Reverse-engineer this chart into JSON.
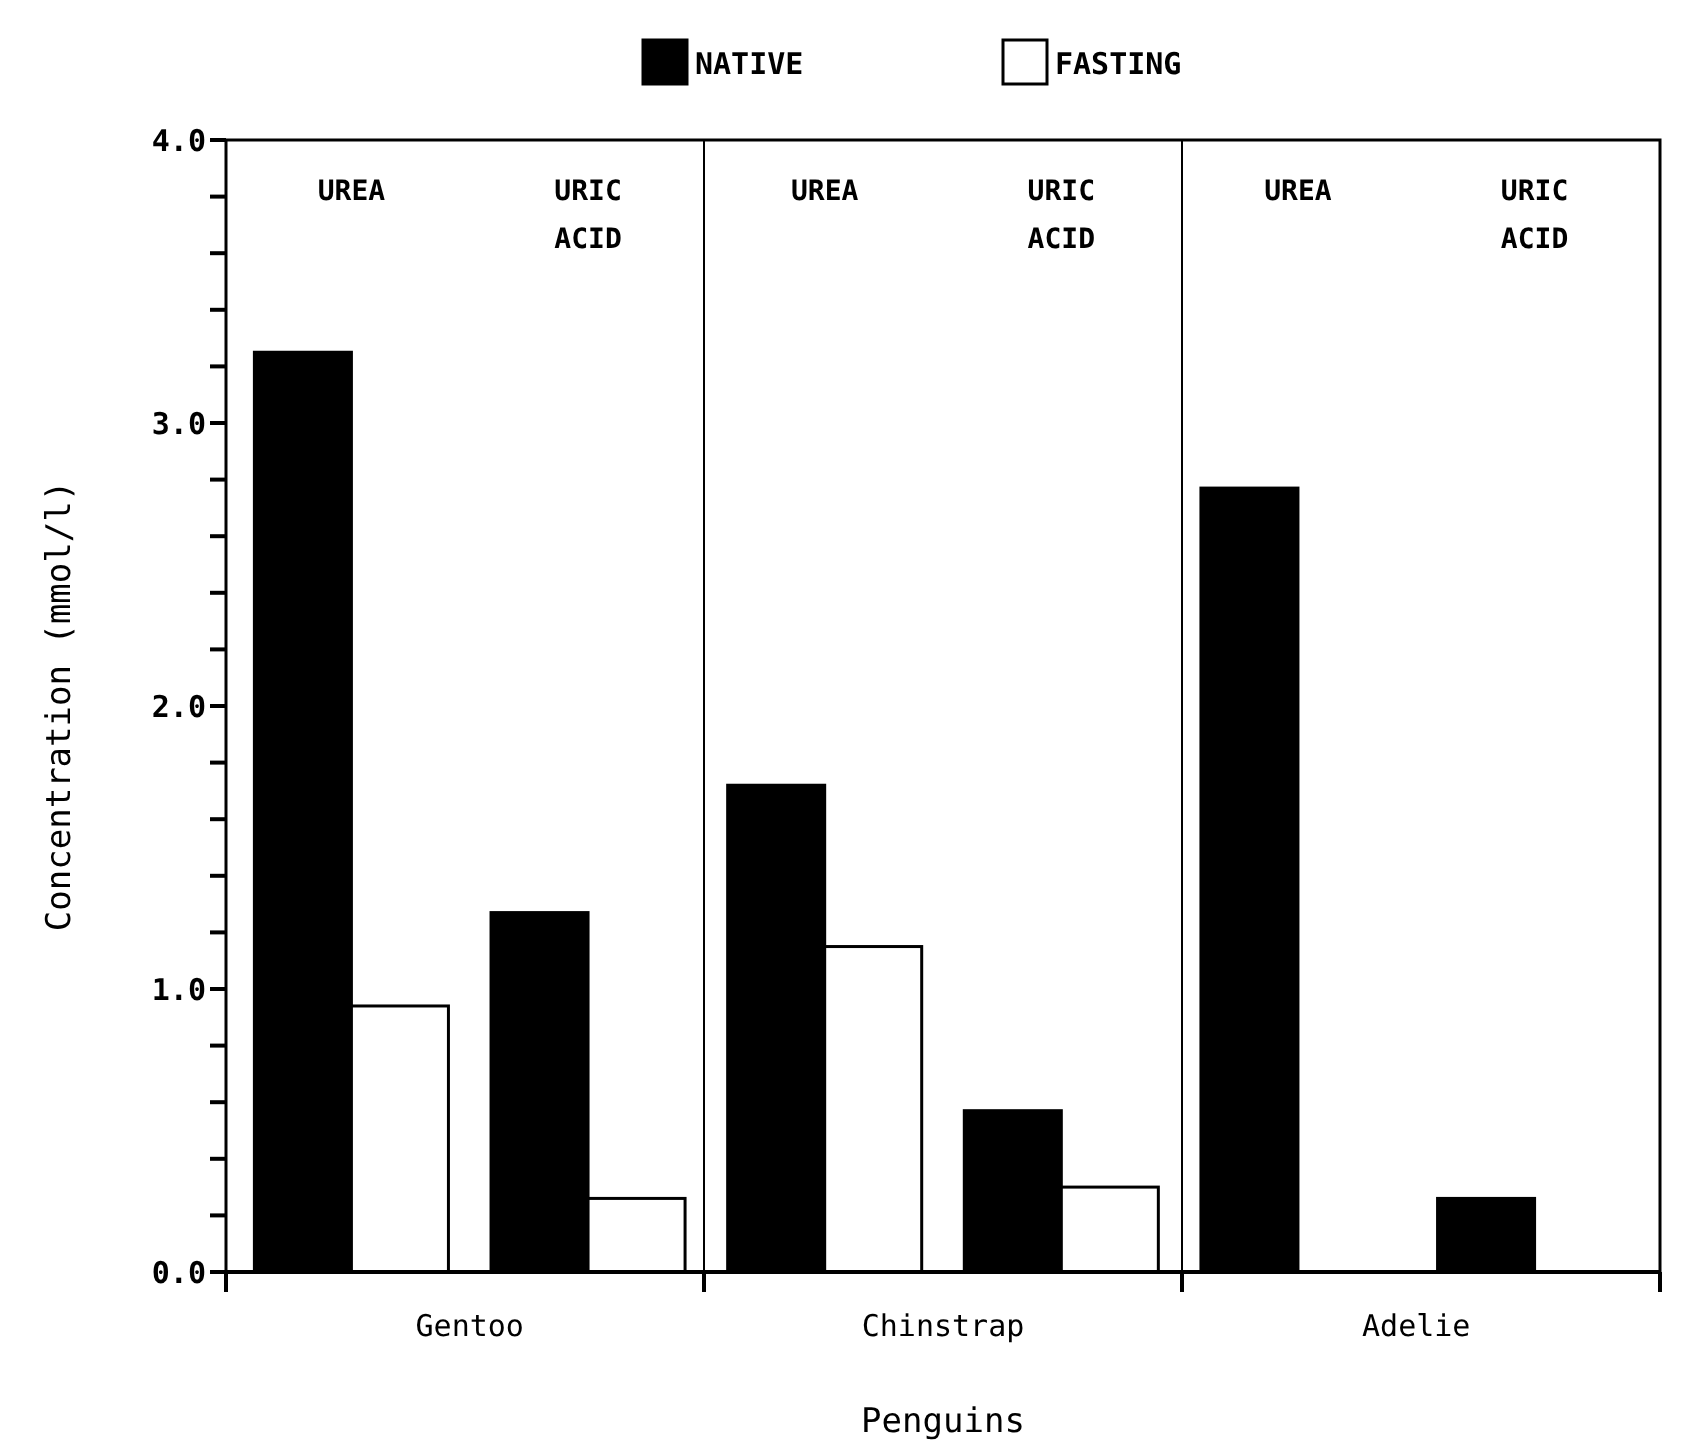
{
  "chart_data": {
    "type": "bar",
    "xlabel": "Penguins",
    "ylabel": "Concentration (mmol/l)",
    "categories": [
      "UREA",
      "URIC ACID",
      "UREA",
      "URIC ACID",
      "UREA",
      "URIC ACID"
    ],
    "series": [
      {
        "name": "NATIVE",
        "color": "#000000",
        "values": [
          3.25,
          1.27,
          1.72,
          0.57,
          2.77,
          0.26
        ]
      },
      {
        "name": "FASTING",
        "color": "#ffffff",
        "values": [
          0.94,
          0.26,
          1.15,
          0.3,
          null,
          null
        ]
      }
    ],
    "annotations": [
      "Gentoo",
      "Chinstrap",
      "Adelie"
    ],
    "ylim": [
      0,
      4
    ],
    "yticks": [
      {
        "value": 0,
        "label": "0.0"
      },
      {
        "value": 0.2,
        "label": null
      },
      {
        "value": 0.4,
        "label": null
      },
      {
        "value": 0.6,
        "label": null
      },
      {
        "value": 0.8,
        "label": null
      },
      {
        "value": 1,
        "label": "1.0"
      },
      {
        "value": 1.2,
        "label": null
      },
      {
        "value": 1.4,
        "label": null
      },
      {
        "value": 1.6,
        "label": null
      },
      {
        "value": 1.8,
        "label": null
      },
      {
        "value": 2,
        "label": "2.0"
      },
      {
        "value": 2.2,
        "label": null
      },
      {
        "value": 2.4,
        "label": null
      },
      {
        "value": 2.6,
        "label": null
      },
      {
        "value": 2.8,
        "label": null
      },
      {
        "value": 3,
        "label": "3.0"
      },
      {
        "value": 3.2,
        "label": null
      },
      {
        "value": 3.4,
        "label": null
      },
      {
        "value": 3.6,
        "label": null
      },
      {
        "value": 3.8,
        "label": null
      },
      {
        "value": 4,
        "label": "4.0"
      }
    ],
    "grid": false,
    "legend": "top"
  }
}
